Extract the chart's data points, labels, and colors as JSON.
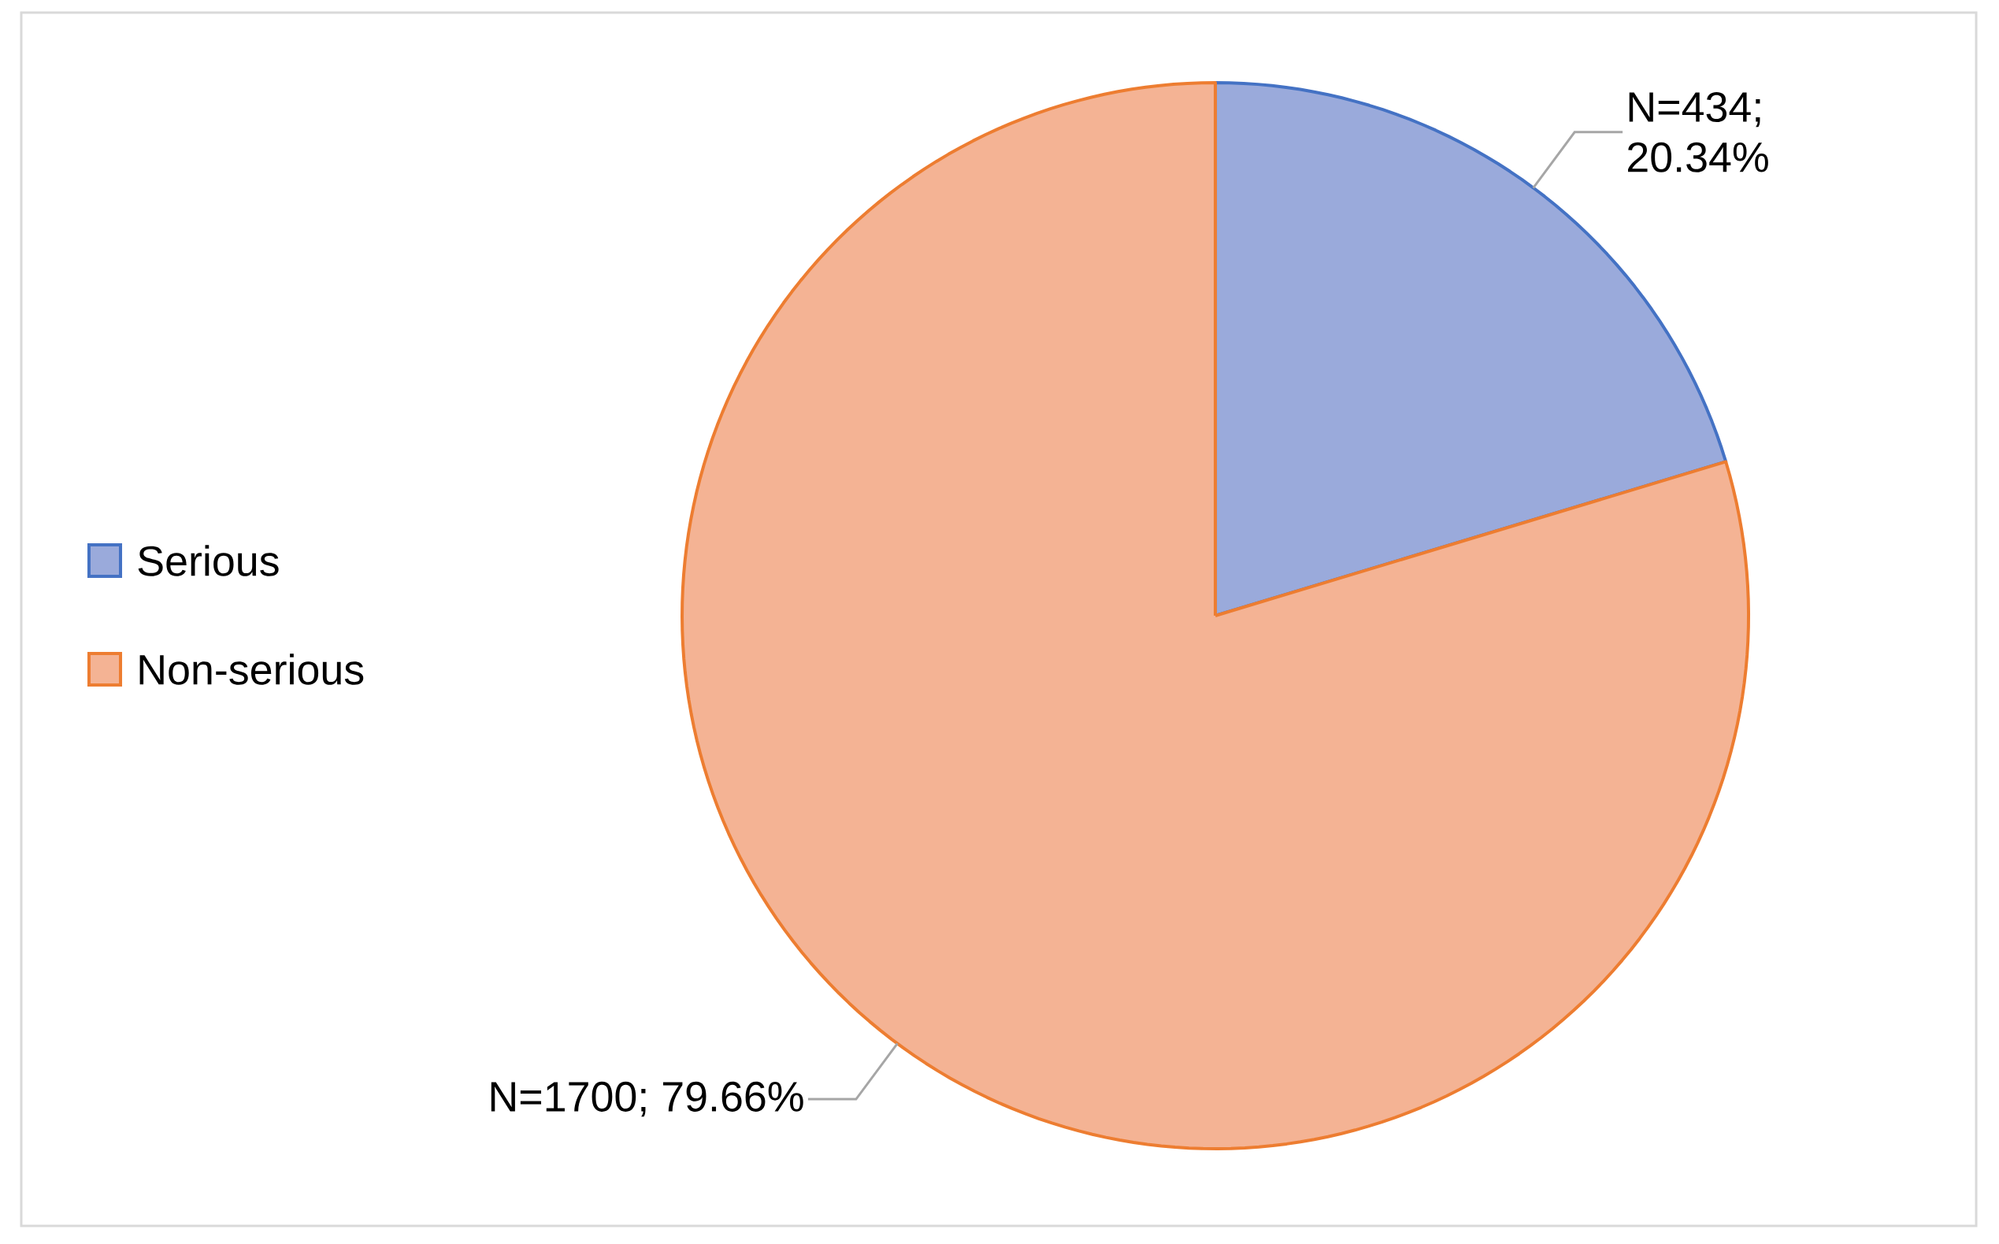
{
  "chart_data": {
    "type": "pie",
    "categories": [
      "Serious",
      "Non-serious"
    ],
    "values": [
      434,
      1700
    ],
    "value_labels": [
      "N=434; 20.34%",
      "N=1700; 79.66%"
    ],
    "colors": [
      "#9aaadb",
      "#f4b394"
    ],
    "legend": "left"
  }
}
